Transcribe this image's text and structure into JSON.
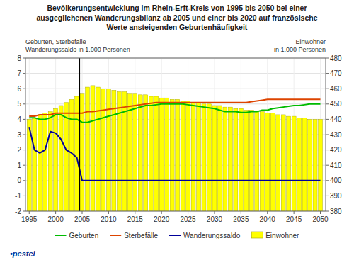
{
  "chart_data": {
    "type": "bar",
    "title": "Bevölkerungsentwicklung im Rhein-Erft-Kreis von 1995 bis 2050 bei einer\nausgeglichenen Wanderungsbilanz ab 2005 und einer bis 2020 auf französische\nWerte ansteigenden Geburtenhäufigkeit",
    "ylabel": "Geburten, Sterbefälle\nWanderungssaldo in 1.000 Personen",
    "y2label": "Einwohner\nin 1.000 Personen",
    "x": [
      1995,
      1996,
      1997,
      1998,
      1999,
      2000,
      2001,
      2002,
      2003,
      2004,
      2005,
      2006,
      2007,
      2008,
      2009,
      2010,
      2011,
      2012,
      2013,
      2014,
      2015,
      2016,
      2017,
      2018,
      2019,
      2020,
      2021,
      2022,
      2023,
      2024,
      2025,
      2026,
      2027,
      2028,
      2029,
      2030,
      2031,
      2032,
      2033,
      2034,
      2035,
      2036,
      2037,
      2038,
      2039,
      2040,
      2041,
      2042,
      2043,
      2044,
      2045,
      2046,
      2047,
      2048,
      2049,
      2050
    ],
    "series": [
      {
        "name": "Geburten",
        "type": "line",
        "color": "#00bb00",
        "values": [
          4.1,
          4.1,
          4.0,
          4.0,
          4.1,
          4.3,
          4.3,
          4.1,
          4.0,
          4.0,
          3.8,
          3.8,
          3.9,
          4.0,
          4.1,
          4.2,
          4.3,
          4.4,
          4.5,
          4.6,
          4.7,
          4.8,
          4.9,
          4.9,
          4.95,
          5.0,
          5.0,
          5.0,
          5.0,
          5.0,
          4.95,
          4.9,
          4.85,
          4.8,
          4.75,
          4.7,
          4.6,
          4.5,
          4.5,
          4.5,
          4.45,
          4.45,
          4.5,
          4.5,
          4.6,
          4.6,
          4.7,
          4.75,
          4.8,
          4.85,
          4.9,
          4.9,
          4.95,
          5.0,
          5.0,
          5.0
        ]
      },
      {
        "name": "Sterbefälle",
        "type": "line",
        "color": "#dd4400",
        "values": [
          4.2,
          4.2,
          4.3,
          4.3,
          4.3,
          4.4,
          4.4,
          4.4,
          4.4,
          4.4,
          4.4,
          4.5,
          4.5,
          4.55,
          4.6,
          4.65,
          4.7,
          4.75,
          4.8,
          4.85,
          4.9,
          4.95,
          5.0,
          5.05,
          5.1,
          5.1,
          5.1,
          5.1,
          5.1,
          5.1,
          5.1,
          5.1,
          5.1,
          5.1,
          5.1,
          5.1,
          5.1,
          5.1,
          5.1,
          5.1,
          5.1,
          5.1,
          5.15,
          5.2,
          5.25,
          5.3,
          5.3,
          5.3,
          5.3,
          5.3,
          5.3,
          5.3,
          5.3,
          5.3,
          5.3,
          5.3
        ]
      },
      {
        "name": "Wanderungssaldo",
        "type": "line",
        "color": "#000099",
        "values": [
          3.5,
          2.0,
          1.8,
          2.0,
          3.2,
          3.1,
          2.7,
          2.0,
          1.8,
          1.5,
          0.0,
          0.0,
          0.0,
          0.0,
          0.0,
          0.0,
          0.0,
          0.0,
          0.0,
          0.0,
          0.0,
          0.0,
          0.0,
          0.0,
          0.0,
          0.0,
          0.0,
          0.0,
          0.0,
          0.0,
          0.0,
          0.0,
          0.0,
          0.0,
          0.0,
          0.0,
          0.0,
          0.0,
          0.0,
          0.0,
          0.0,
          0.0,
          0.0,
          0.0,
          0.0,
          0.0,
          0.0,
          0.0,
          0.0,
          0.0,
          0.0,
          0.0,
          0.0,
          0.0,
          0.0,
          0.0
        ]
      },
      {
        "name": "Einwohner",
        "type": "bar",
        "axis": "y2",
        "color": "#ffff00",
        "values": [
          440,
          441,
          443,
          444,
          445,
          447,
          449,
          451,
          453,
          455,
          457,
          461,
          462,
          461,
          460,
          460,
          459,
          458,
          458,
          457,
          457,
          456,
          456,
          455,
          455,
          454,
          454,
          453,
          453,
          452,
          452,
          451,
          451,
          450,
          450,
          449,
          449,
          448,
          448,
          447,
          447,
          446,
          446,
          445,
          445,
          444,
          444,
          443,
          443,
          442,
          442,
          441,
          441,
          440,
          440,
          440
        ]
      }
    ],
    "xlim": [
      1994.3,
      2051
    ],
    "xticks": [
      1995,
      2000,
      2005,
      2010,
      2015,
      2020,
      2025,
      2030,
      2035,
      2040,
      2045,
      2050
    ],
    "ylim": [
      -2,
      8
    ],
    "yticks": [
      -2,
      -1,
      0,
      1,
      2,
      3,
      4,
      5,
      6,
      7,
      8
    ],
    "y2lim": [
      380,
      480
    ],
    "y2ticks": [
      380,
      390,
      400,
      410,
      420,
      430,
      440,
      450,
      460,
      470,
      480
    ],
    "grid": true,
    "legend": "bottom",
    "annotations": [
      {
        "text": "•pestel"
      },
      {
        "x": 2004.5
      }
    ]
  }
}
